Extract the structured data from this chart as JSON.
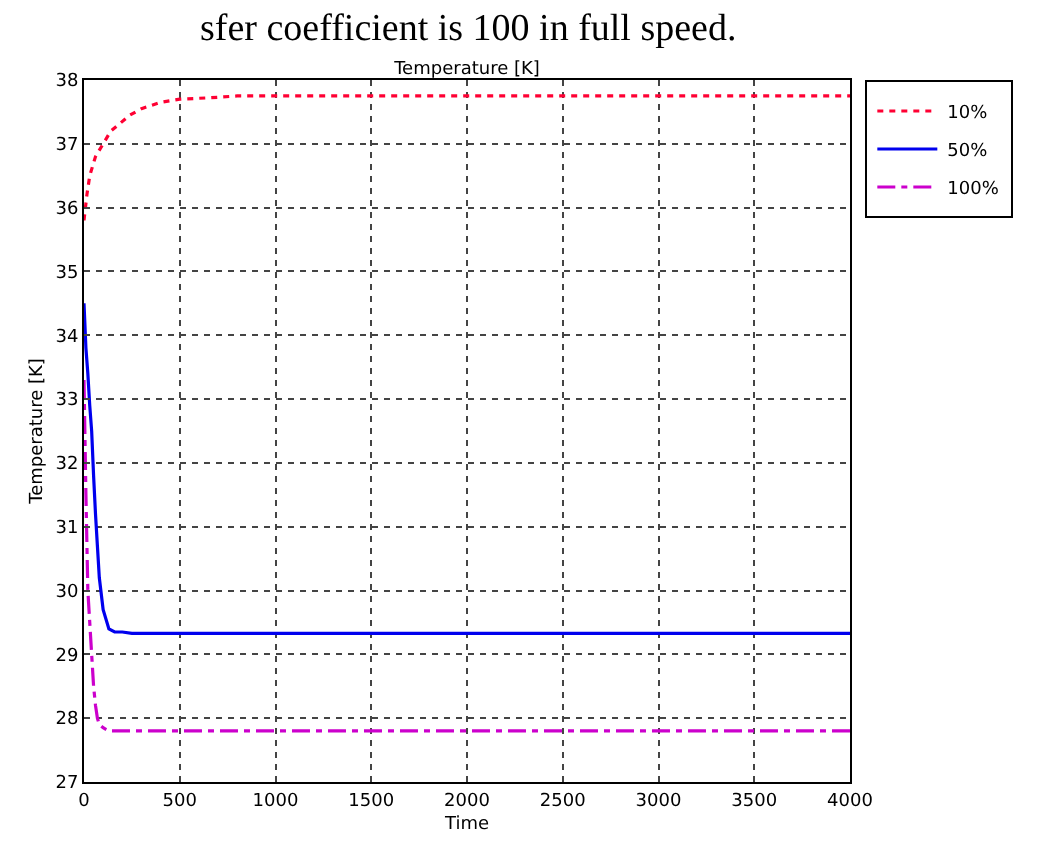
{
  "chart_data": {
    "type": "line",
    "title": "Temperature [K]",
    "xlabel": "Time",
    "ylabel": "Temperature [K]",
    "annotations": [
      "sfer coefficient is 100 in full speed."
    ],
    "xlim": [
      0,
      4000
    ],
    "xticks": [
      0,
      500,
      1000,
      1500,
      2000,
      2500,
      3000,
      3500,
      4000
    ],
    "ylim": [
      27,
      38
    ],
    "yticks": [
      27,
      28,
      29,
      30,
      31,
      32,
      33,
      34,
      35,
      36,
      37,
      38
    ],
    "grid": true,
    "legend": "top right",
    "marker": "none",
    "series": [
      {
        "name": "10%",
        "color": "#ff0033",
        "line_style": "dotted",
        "x": [
          0,
          15,
          30,
          60,
          100,
          140,
          180,
          240,
          300,
          400,
          500,
          650,
          800,
          1000,
          2000,
          4000
        ],
        "values": [
          35.8,
          36.2,
          36.5,
          36.8,
          37.0,
          37.2,
          37.3,
          37.45,
          37.55,
          37.65,
          37.7,
          37.72,
          37.75,
          37.75,
          37.75,
          37.75
        ]
      },
      {
        "name": "50%",
        "color": "#0000ee",
        "line_style": "solid",
        "x": [
          0,
          10,
          20,
          30,
          40,
          50,
          60,
          70,
          80,
          100,
          130,
          160,
          200,
          250,
          1000,
          4000
        ],
        "values": [
          34.5,
          33.8,
          33.4,
          32.9,
          32.5,
          31.8,
          31.2,
          30.7,
          30.2,
          29.7,
          29.4,
          29.35,
          29.35,
          29.33,
          29.33,
          29.33
        ]
      },
      {
        "name": "100%",
        "color": "#cc00cc",
        "line_style": "dashdot",
        "x": [
          0,
          10,
          20,
          30,
          40,
          50,
          60,
          70,
          80,
          100,
          130,
          200,
          1000,
          4000
        ],
        "values": [
          33.3,
          31.5,
          30.0,
          29.5,
          29.0,
          28.5,
          28.2,
          28.0,
          27.9,
          27.85,
          27.8,
          27.8,
          27.8,
          27.8
        ]
      }
    ]
  }
}
